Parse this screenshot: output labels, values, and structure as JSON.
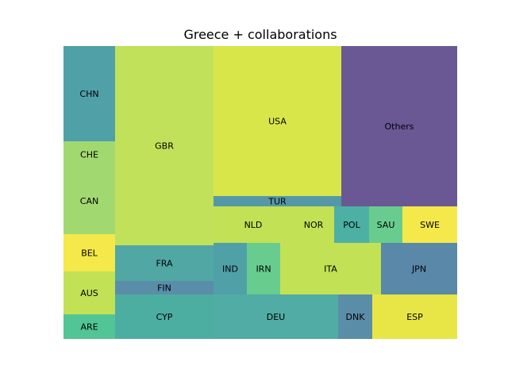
{
  "chart_data": {
    "type": "treemap",
    "title": "Greece + collaborations",
    "cells": [
      {
        "label": "CHN",
        "color": "#50a0a8"
      },
      {
        "label": "CHE",
        "color": "#a2d870"
      },
      {
        "label": "CAN",
        "color": "#a2d870"
      },
      {
        "label": "BEL",
        "color": "#f5e84a"
      },
      {
        "label": "AUS",
        "color": "#c2e154"
      },
      {
        "label": "ARE",
        "color": "#52c596"
      },
      {
        "label": "GBR",
        "color": "#c2e15a"
      },
      {
        "label": "FRA",
        "color": "#50a7a4"
      },
      {
        "label": "FIN",
        "color": "#5a8ea8"
      },
      {
        "label": "CYP",
        "color": "#4caea0"
      },
      {
        "label": "USA",
        "color": "#d9e64a"
      },
      {
        "label": "TUR",
        "color": "#5498a8"
      },
      {
        "label": "Others",
        "color": "#6a5895"
      },
      {
        "label": "NLD",
        "color": "#c2e154"
      },
      {
        "label": "NOR",
        "color": "#c2e154"
      },
      {
        "label": "POL",
        "color": "#4cb0a4"
      },
      {
        "label": "SAU",
        "color": "#68cc8e"
      },
      {
        "label": "SWE",
        "color": "#f5e84a"
      },
      {
        "label": "IND",
        "color": "#50a0a8"
      },
      {
        "label": "IRN",
        "color": "#68cc8e"
      },
      {
        "label": "ITA",
        "color": "#c2e154"
      },
      {
        "label": "JPN",
        "color": "#5a88a8"
      },
      {
        "label": "DEU",
        "color": "#50aca4"
      },
      {
        "label": "DNK",
        "color": "#5a8ea8"
      },
      {
        "label": "ESP",
        "color": "#e8e646"
      }
    ]
  }
}
